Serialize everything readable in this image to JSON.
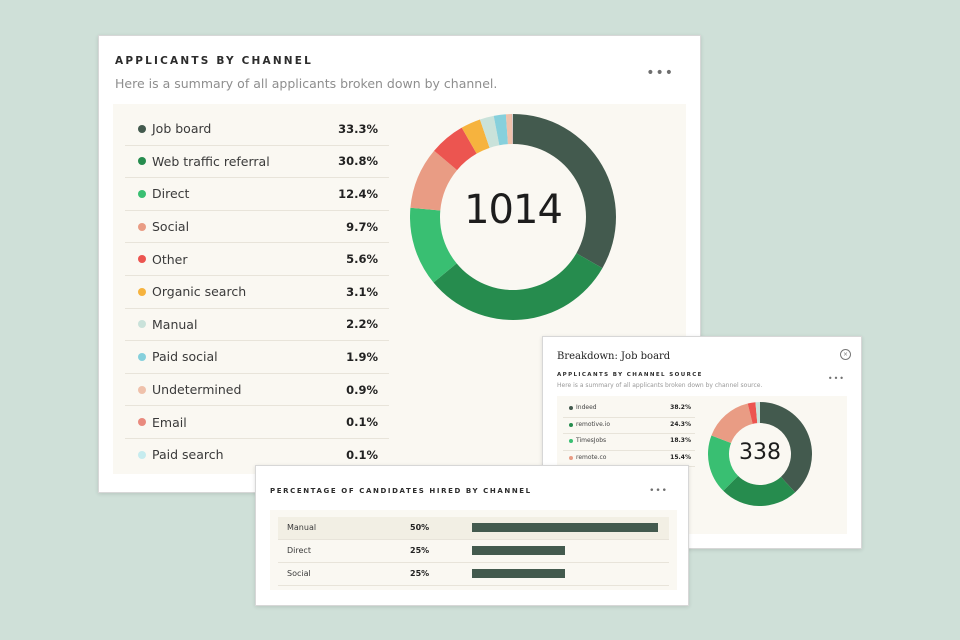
{
  "main": {
    "title": "APPLICANTS BY CHANNEL",
    "subtitle": "Here is a summary of all applicants broken down by channel.",
    "more_label": "•••",
    "total": "1014",
    "channels": [
      {
        "label": "Job board",
        "value": "33.3%",
        "pct": 33.3,
        "color": "#435a4e"
      },
      {
        "label": "Web traffic referral",
        "value": "30.8%",
        "pct": 30.8,
        "color": "#268c4e"
      },
      {
        "label": "Direct",
        "value": "12.4%",
        "pct": 12.4,
        "color": "#39bf72"
      },
      {
        "label": "Social",
        "value": "9.7%",
        "pct": 9.7,
        "color": "#e99c84"
      },
      {
        "label": "Other",
        "value": "5.6%",
        "pct": 5.6,
        "color": "#ec5550"
      },
      {
        "label": "Organic search",
        "value": "3.1%",
        "pct": 3.1,
        "color": "#f6b33e"
      },
      {
        "label": "Manual",
        "value": "2.2%",
        "pct": 2.2,
        "color": "#c9e2da"
      },
      {
        "label": "Paid social",
        "value": "1.9%",
        "pct": 1.9,
        "color": "#86d0dc"
      },
      {
        "label": "Undetermined",
        "value": "0.9%",
        "pct": 0.9,
        "color": "#efc1ab"
      },
      {
        "label": "Email",
        "value": "0.1%",
        "pct": 0.1,
        "color": "#e98a7e"
      },
      {
        "label": "Paid search",
        "value": "0.1%",
        "pct": 0.1,
        "color": "#c6ecef"
      }
    ]
  },
  "breakdown": {
    "title": "Breakdown: Job board",
    "subtitle_caps": "APPLICANTS BY CHANNEL SOURCE",
    "subtitle": "Here is a summary of all applicants broken down by channel source.",
    "more_label": "•••",
    "close_label": "×",
    "total": "338",
    "sources": [
      {
        "label": "Indeed",
        "value": "38.2%",
        "pct": 38.2,
        "color": "#435a4e"
      },
      {
        "label": "remotive.io",
        "value": "24.3%",
        "pct": 24.3,
        "color": "#268c4e"
      },
      {
        "label": "TimesJobs",
        "value": "18.3%",
        "pct": 18.3,
        "color": "#39bf72"
      },
      {
        "label": "remote.co",
        "value": "15.4%",
        "pct": 15.4,
        "color": "#e99c84"
      }
    ],
    "extra_segments": [
      {
        "pct": 2.4,
        "color": "#ec5550"
      },
      {
        "pct": 1.4,
        "color": "#c9e2da"
      }
    ]
  },
  "hired": {
    "title": "PERCENTAGE OF CANDIDATES HIRED BY CHANNEL",
    "more_label": "•••",
    "rows": [
      {
        "label": "Manual",
        "value": "50%",
        "pct": 50
      },
      {
        "label": "Direct",
        "value": "25%",
        "pct": 25
      },
      {
        "label": "Social",
        "value": "25%",
        "pct": 25
      }
    ],
    "bar_color": "#435a4e"
  }
}
